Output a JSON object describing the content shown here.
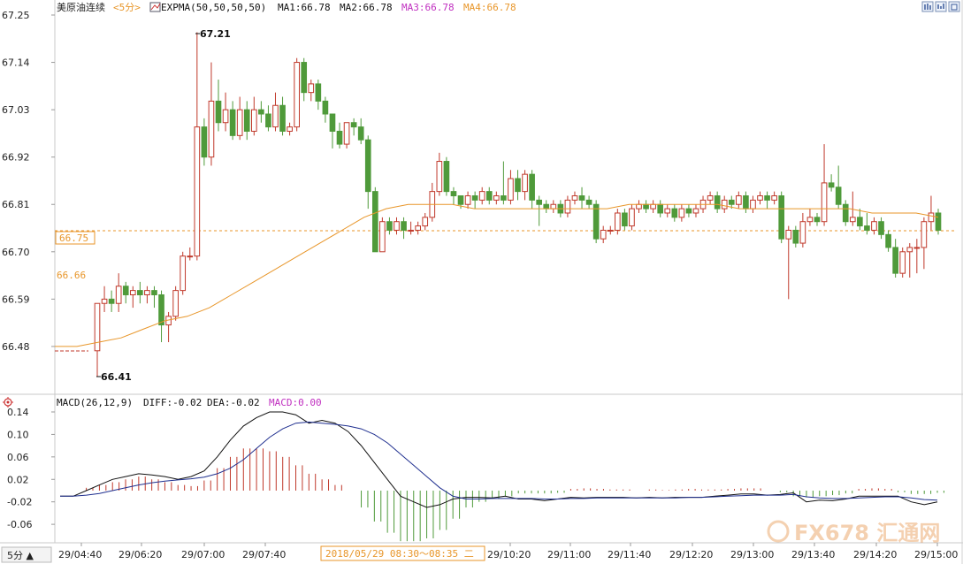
{
  "header": {
    "symbol": "美原油连续",
    "period_tag": "<5分>",
    "indicator": "EXPMA(50,50,50,50)",
    "ma1": "MA1:66.78",
    "ma2": "MA2:66.78",
    "ma3": "MA3:66.78",
    "ma4": "MA4:66.78"
  },
  "macd_header": {
    "name": "MACD(26,12,9)",
    "diff": "DIFF:-0.02",
    "dea": "DEA:-0.02",
    "macd": "MACD:0.00"
  },
  "period_button": "5分 ▲",
  "crosshair_time": "2018/05/29 08:30～08:35 二",
  "current_price_tag": "66.75",
  "ma_price_tag": "66.66",
  "high_marker": "67.21",
  "low_marker": "66.41",
  "watermark": "FX678 汇通网",
  "colors": {
    "up": "#c0392b",
    "down": "#4f9a3a",
    "ma_line": "#e8962a",
    "dash": "#e8962a",
    "diff_line": "#111111",
    "dea_line": "#1f2f8f",
    "ma3": "#c030c0",
    "ma4": "#e8962a"
  },
  "chart_data": [
    {
      "type": "candlestick",
      "title": "美原油连续",
      "y_ticks": [
        "67.25",
        "67.14",
        "67.03",
        "66.92",
        "66.81",
        "66.70",
        "66.59",
        "66.48"
      ],
      "ylim": [
        66.41,
        67.25
      ],
      "x_ticks": [
        "29/04:40",
        "29/06:20",
        "29/07:00",
        "29/07:40",
        "29/10:20",
        "29/11:00",
        "29/11:40",
        "29/12:20",
        "29/13:00",
        "29/13:40",
        "29/14:20",
        "29/15:00"
      ],
      "high": 67.21,
      "low": 66.41,
      "candles": [
        [
          66.47,
          66.58,
          66.41,
          66.58
        ],
        [
          66.58,
          66.59,
          66.56,
          66.62
        ],
        [
          66.59,
          66.58,
          66.56,
          66.61
        ],
        [
          66.58,
          66.62,
          66.56,
          66.65
        ],
        [
          66.62,
          66.6,
          66.58,
          66.63
        ],
        [
          66.6,
          66.61,
          66.57,
          66.62
        ],
        [
          66.61,
          66.6,
          66.58,
          66.63
        ],
        [
          66.6,
          66.61,
          66.58,
          66.62
        ],
        [
          66.61,
          66.6,
          66.57,
          66.62
        ],
        [
          66.6,
          66.53,
          66.49,
          66.61
        ],
        [
          66.53,
          66.55,
          66.49,
          66.56
        ],
        [
          66.55,
          66.61,
          66.54,
          66.62
        ],
        [
          66.61,
          66.69,
          66.6,
          66.7
        ],
        [
          66.69,
          66.69,
          66.68,
          66.71
        ],
        [
          66.69,
          66.99,
          66.68,
          67.21
        ],
        [
          66.99,
          66.92,
          66.9,
          67.01
        ],
        [
          66.92,
          67.05,
          66.9,
          67.14
        ],
        [
          67.05,
          67.0,
          66.98,
          67.1
        ],
        [
          67.0,
          67.03,
          66.98,
          67.07
        ],
        [
          67.03,
          66.97,
          66.96,
          67.05
        ],
        [
          66.97,
          67.03,
          66.96,
          67.06
        ],
        [
          67.03,
          66.98,
          66.96,
          67.05
        ],
        [
          66.98,
          67.03,
          66.97,
          67.06
        ],
        [
          67.03,
          67.02,
          67.0,
          67.05
        ],
        [
          67.02,
          66.99,
          66.98,
          67.04
        ],
        [
          66.99,
          67.04,
          66.98,
          67.07
        ],
        [
          67.04,
          66.98,
          66.97,
          67.06
        ],
        [
          66.98,
          66.99,
          66.97,
          67.0
        ],
        [
          66.99,
          67.14,
          66.98,
          67.15
        ],
        [
          67.14,
          67.07,
          67.05,
          67.15
        ],
        [
          67.07,
          67.09,
          67.05,
          67.1
        ],
        [
          67.09,
          67.05,
          67.03,
          67.1
        ],
        [
          67.05,
          67.02,
          67.0,
          67.06
        ],
        [
          67.02,
          66.98,
          66.94,
          67.02
        ],
        [
          66.98,
          66.95,
          66.94,
          67.0
        ],
        [
          66.95,
          67.0,
          66.94,
          67.0
        ],
        [
          67.0,
          66.99,
          66.97,
          67.01
        ],
        [
          66.99,
          66.96,
          66.95,
          67.01
        ],
        [
          66.96,
          66.84,
          66.8,
          66.97
        ],
        [
          66.84,
          66.7,
          66.7,
          66.85
        ],
        [
          66.7,
          66.77,
          66.7,
          66.78
        ],
        [
          66.77,
          66.75,
          66.74,
          66.78
        ],
        [
          66.75,
          66.77,
          66.74,
          66.78
        ],
        [
          66.77,
          66.75,
          66.73,
          66.78
        ],
        [
          66.75,
          66.75,
          66.74,
          66.77
        ],
        [
          66.75,
          66.76,
          66.74,
          66.77
        ],
        [
          66.76,
          66.78,
          66.75,
          66.79
        ],
        [
          66.78,
          66.84,
          66.77,
          66.86
        ],
        [
          66.84,
          66.91,
          66.83,
          66.93
        ],
        [
          66.91,
          66.84,
          66.83,
          66.92
        ],
        [
          66.84,
          66.83,
          66.81,
          66.85
        ],
        [
          66.83,
          66.81,
          66.8,
          66.83
        ],
        [
          66.81,
          66.83,
          66.8,
          66.84
        ],
        [
          66.83,
          66.82,
          66.8,
          66.84
        ],
        [
          66.82,
          66.84,
          66.81,
          66.85
        ],
        [
          66.84,
          66.82,
          66.81,
          66.85
        ],
        [
          66.82,
          66.83,
          66.81,
          66.84
        ],
        [
          66.83,
          66.82,
          66.81,
          66.91
        ],
        [
          66.82,
          66.87,
          66.81,
          66.89
        ],
        [
          66.87,
          66.84,
          66.82,
          66.89
        ],
        [
          66.84,
          66.88,
          66.82,
          66.89
        ],
        [
          66.88,
          66.82,
          66.8,
          66.89
        ],
        [
          66.82,
          66.81,
          66.76,
          66.83
        ],
        [
          66.81,
          66.8,
          66.79,
          66.82
        ],
        [
          66.8,
          66.81,
          66.79,
          66.82
        ],
        [
          66.81,
          66.79,
          66.78,
          66.82
        ],
        [
          66.79,
          66.82,
          66.78,
          66.83
        ],
        [
          66.82,
          66.83,
          66.81,
          66.84
        ],
        [
          66.83,
          66.82,
          66.8,
          66.85
        ],
        [
          66.82,
          66.81,
          66.8,
          66.83
        ],
        [
          66.81,
          66.73,
          66.72,
          66.82
        ],
        [
          66.73,
          66.75,
          66.72,
          66.76
        ],
        [
          66.75,
          66.75,
          66.74,
          66.76
        ],
        [
          66.75,
          66.79,
          66.74,
          66.8
        ],
        [
          66.79,
          66.76,
          66.75,
          66.8
        ],
        [
          66.76,
          66.8,
          66.75,
          66.81
        ],
        [
          66.8,
          66.81,
          66.79,
          66.82
        ],
        [
          66.81,
          66.8,
          66.79,
          66.82
        ],
        [
          66.8,
          66.81,
          66.79,
          66.82
        ],
        [
          66.81,
          66.79,
          66.78,
          66.82
        ],
        [
          66.79,
          66.8,
          66.78,
          66.81
        ],
        [
          66.8,
          66.78,
          66.77,
          66.81
        ],
        [
          66.78,
          66.8,
          66.77,
          66.81
        ],
        [
          66.8,
          66.79,
          66.78,
          66.81
        ],
        [
          66.79,
          66.8,
          66.78,
          66.81
        ],
        [
          66.8,
          66.82,
          66.79,
          66.83
        ],
        [
          66.82,
          66.83,
          66.81,
          66.84
        ],
        [
          66.83,
          66.8,
          66.79,
          66.84
        ],
        [
          66.8,
          66.82,
          66.79,
          66.83
        ],
        [
          66.82,
          66.81,
          66.8,
          66.83
        ],
        [
          66.81,
          66.83,
          66.8,
          66.84
        ],
        [
          66.83,
          66.8,
          66.79,
          66.84
        ],
        [
          66.8,
          66.82,
          66.79,
          66.83
        ],
        [
          66.82,
          66.83,
          66.81,
          66.84
        ],
        [
          66.83,
          66.82,
          66.8,
          66.84
        ],
        [
          66.82,
          66.83,
          66.81,
          66.84
        ],
        [
          66.83,
          66.73,
          66.72,
          66.84
        ],
        [
          66.73,
          66.75,
          66.59,
          66.76
        ],
        [
          66.75,
          66.72,
          66.71,
          66.76
        ],
        [
          66.72,
          66.77,
          66.71,
          66.79
        ],
        [
          66.77,
          66.78,
          66.76,
          66.8
        ],
        [
          66.78,
          66.77,
          66.76,
          66.79
        ],
        [
          66.77,
          66.86,
          66.76,
          66.95
        ],
        [
          66.86,
          66.85,
          66.84,
          66.88
        ],
        [
          66.85,
          66.81,
          66.8,
          66.9
        ],
        [
          66.81,
          66.77,
          66.76,
          66.82
        ],
        [
          66.77,
          66.78,
          66.76,
          66.84
        ],
        [
          66.78,
          66.76,
          66.75,
          66.8
        ],
        [
          66.76,
          66.75,
          66.74,
          66.79
        ],
        [
          66.75,
          66.77,
          66.74,
          66.78
        ],
        [
          66.77,
          66.74,
          66.73,
          66.78
        ],
        [
          66.74,
          66.71,
          66.7,
          66.75
        ],
        [
          66.71,
          66.65,
          66.64,
          66.73
        ],
        [
          66.65,
          66.7,
          66.64,
          66.71
        ],
        [
          66.7,
          66.71,
          66.64,
          66.72
        ],
        [
          66.71,
          66.71,
          66.65,
          66.73
        ],
        [
          66.71,
          66.77,
          66.66,
          66.78
        ],
        [
          66.77,
          66.79,
          66.75,
          66.83
        ],
        [
          66.79,
          66.75,
          66.74,
          66.8
        ]
      ],
      "expma": [
        66.48,
        66.48,
        66.49,
        66.5,
        66.52,
        66.54,
        66.55,
        66.57,
        66.6,
        66.63,
        66.66,
        66.69,
        66.72,
        66.75,
        66.78,
        66.8,
        66.81,
        66.81,
        66.81,
        66.8,
        66.8,
        66.8,
        66.8,
        66.8,
        66.8,
        66.8,
        66.81,
        66.81,
        66.81,
        66.81,
        66.81,
        66.8,
        66.8,
        66.8,
        66.8,
        66.8,
        66.8,
        66.79,
        66.79,
        66.79,
        66.78
      ]
    },
    {
      "type": "macd",
      "title": "MACD(26,12,9)",
      "y_ticks": [
        "0.14",
        "0.10",
        "0.06",
        "0.02",
        "-0.02",
        "-0.06"
      ],
      "ylim": [
        -0.085,
        0.14
      ],
      "diff": [
        -0.01,
        -0.01,
        0.0,
        0.01,
        0.02,
        0.025,
        0.03,
        0.028,
        0.025,
        0.02,
        0.025,
        0.035,
        0.06,
        0.09,
        0.115,
        0.13,
        0.14,
        0.14,
        0.135,
        0.12,
        0.125,
        0.12,
        0.105,
        0.08,
        0.05,
        0.02,
        -0.01,
        -0.02,
        -0.03,
        -0.025,
        -0.015,
        -0.012,
        -0.012,
        -0.013,
        -0.01,
        -0.015,
        -0.015,
        -0.018,
        -0.015,
        -0.012,
        -0.013,
        -0.012,
        -0.012,
        -0.012,
        -0.013,
        -0.012,
        -0.013,
        -0.012,
        -0.012,
        -0.012,
        -0.01,
        -0.008,
        -0.006,
        -0.006,
        -0.008,
        -0.007,
        -0.004,
        -0.02,
        -0.017,
        -0.018,
        -0.015,
        -0.01,
        -0.01,
        -0.01,
        -0.01,
        -0.02,
        -0.025,
        -0.02
      ],
      "dea": [
        -0.01,
        -0.01,
        -0.008,
        -0.005,
        0.0,
        0.005,
        0.01,
        0.014,
        0.017,
        0.019,
        0.021,
        0.024,
        0.03,
        0.04,
        0.055,
        0.075,
        0.095,
        0.11,
        0.12,
        0.122,
        0.12,
        0.118,
        0.115,
        0.11,
        0.1,
        0.085,
        0.065,
        0.045,
        0.025,
        0.005,
        -0.01,
        -0.015,
        -0.015,
        -0.014,
        -0.014,
        -0.014,
        -0.014,
        -0.015,
        -0.015,
        -0.014,
        -0.014,
        -0.013,
        -0.013,
        -0.013,
        -0.013,
        -0.013,
        -0.013,
        -0.013,
        -0.012,
        -0.012,
        -0.011,
        -0.01,
        -0.009,
        -0.008,
        -0.008,
        -0.008,
        -0.007,
        -0.011,
        -0.013,
        -0.014,
        -0.014,
        -0.013,
        -0.012,
        -0.011,
        -0.011,
        -0.013,
        -0.016,
        -0.017
      ],
      "hist": [
        0.0,
        0.0,
        0.005,
        0.01,
        0.015,
        0.02,
        0.025,
        0.02,
        0.015,
        0.01,
        0.008,
        0.018,
        0.04,
        0.06,
        0.075,
        0.075,
        0.07,
        0.06,
        0.045,
        0.03,
        0.02,
        0.01,
        0.0,
        -0.03,
        -0.055,
        -0.075,
        -0.09,
        -0.09,
        -0.085,
        -0.07,
        -0.05,
        -0.03,
        -0.02,
        -0.015,
        -0.01,
        -0.005,
        -0.005,
        -0.005,
        -0.004,
        0.003,
        0.004,
        0.003,
        0.002,
        0.002,
        0.0,
        0.002,
        0.001,
        0.002,
        0.003,
        0.002,
        0.002,
        0.003,
        0.004,
        0.004,
        0.0,
        -0.003,
        -0.01,
        -0.012,
        -0.01,
        -0.008,
        -0.005,
        0.003,
        0.004,
        0.003,
        -0.003,
        -0.006,
        -0.006,
        -0.004
      ]
    }
  ]
}
